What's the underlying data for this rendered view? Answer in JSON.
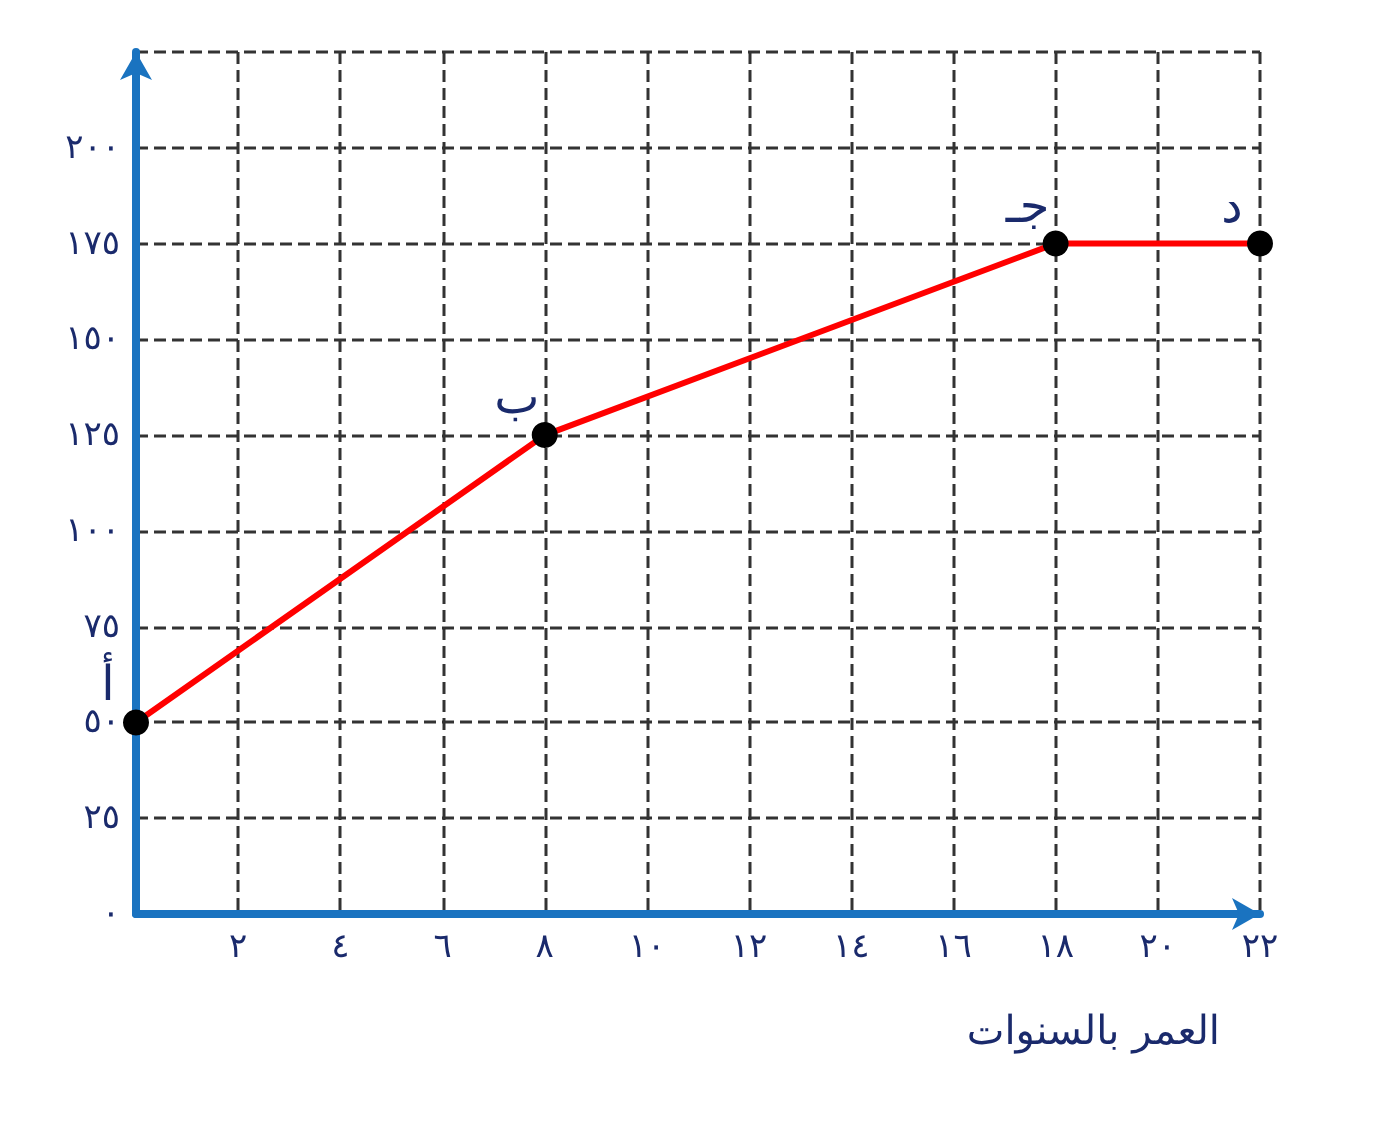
{
  "chart_data": {
    "type": "line",
    "xlabel": "العمر بالسنوات",
    "x": [
      0,
      8,
      18,
      22
    ],
    "series": [
      {
        "color": "#ff0000",
        "values": [
          50,
          125,
          175,
          175
        ]
      }
    ],
    "xlim": [
      0,
      22
    ],
    "xticks": [
      {
        "value": 0,
        "label": null
      },
      {
        "value": 2,
        "label": "٢"
      },
      {
        "value": 4,
        "label": "٤"
      },
      {
        "value": 6,
        "label": "٦"
      },
      {
        "value": 8,
        "label": "٨"
      },
      {
        "value": 10,
        "label": "١٠"
      },
      {
        "value": 12,
        "label": "١٢"
      },
      {
        "value": 14,
        "label": "١٤"
      },
      {
        "value": 16,
        "label": "١٦"
      },
      {
        "value": 18,
        "label": "١٨"
      },
      {
        "value": 20,
        "label": "٢٠"
      },
      {
        "value": 22,
        "label": "٢٢"
      }
    ],
    "ylim": [
      0,
      225
    ],
    "yticks": [
      {
        "value": 0,
        "label": "٠"
      },
      {
        "value": 25,
        "label": "٢٥"
      },
      {
        "value": 50,
        "label": "٥٠"
      },
      {
        "value": 75,
        "label": "٧٥"
      },
      {
        "value": 100,
        "label": "١٠٠"
      },
      {
        "value": 125,
        "label": "١٢٥"
      },
      {
        "value": 150,
        "label": "١٥٠"
      },
      {
        "value": 175,
        "label": "١٧٥"
      },
      {
        "value": 200,
        "label": "٢٠٠"
      },
      {
        "value": 225,
        "label": null
      }
    ],
    "annotations": [
      {
        "text": "أ",
        "x": 0,
        "y": 50
      },
      {
        "text": "ب",
        "x": 8,
        "y": 125
      },
      {
        "text": "جـ",
        "x": 18,
        "y": 175
      },
      {
        "text": "د",
        "x": 22,
        "y": 175
      }
    ],
    "grid": true,
    "marker": "circle",
    "line_style": "solid"
  }
}
